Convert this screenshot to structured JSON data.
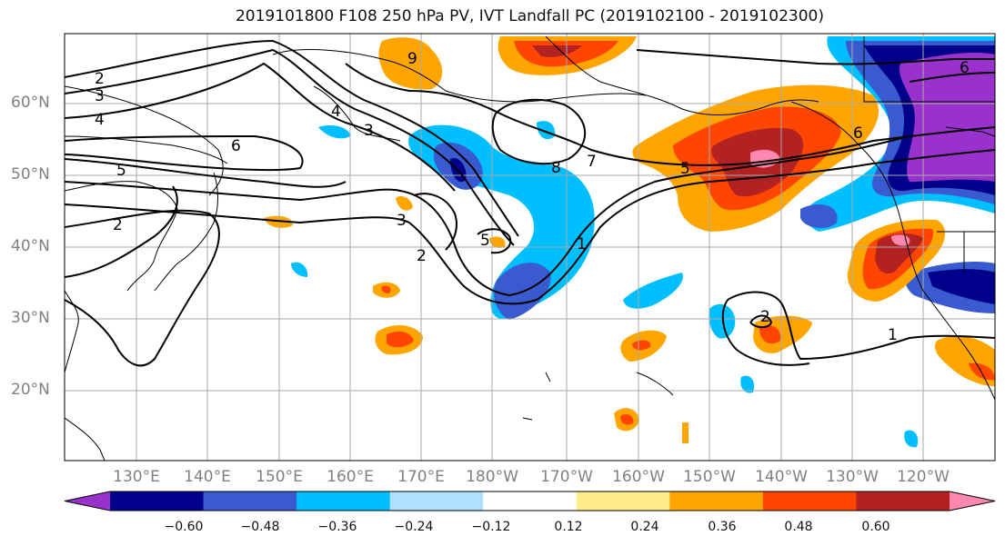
{
  "title": "2019101800 F108 250 hPa PV, IVT Landfall PC (2019102100 - 2019102300)",
  "map": {
    "lat_labels": [
      "60°N",
      "50°N",
      "40°N",
      "30°N",
      "20°N"
    ],
    "lon_labels": [
      "130°E",
      "140°E",
      "150°E",
      "160°E",
      "170°E",
      "180°W",
      "170°W",
      "160°W",
      "150°W",
      "140°W",
      "130°W",
      "120°W"
    ],
    "pv_contour_labels": [
      "2",
      "3",
      "4",
      "6",
      "5",
      "2",
      "4",
      "3",
      "9",
      "3",
      "2",
      "5",
      "1",
      "8",
      "7",
      "5",
      "6",
      "6",
      "2",
      "1"
    ]
  },
  "colorbar": {
    "colors": [
      "#9932cc",
      "#00008b",
      "#3a5bd0",
      "#00bfff",
      "#b0e0ff",
      "#ffffff",
      "#ffec8b",
      "#ffa500",
      "#ff4500",
      "#b22222",
      "#ff88b0"
    ],
    "tick_labels": [
      "−0.60",
      "−0.48",
      "−0.36",
      "−0.24",
      "−0.12",
      "0.12",
      "0.24",
      "0.36",
      "0.48",
      "0.60"
    ]
  }
}
